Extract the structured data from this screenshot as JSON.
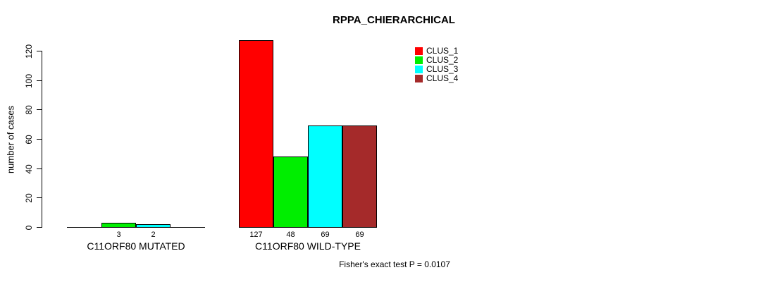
{
  "title": "RPPA_CHIERARCHICAL",
  "footer": "Fisher's exact test P = 0.0107",
  "chart_data": {
    "type": "bar",
    "title": "RPPA_CHIERARCHICAL",
    "xlabel": "",
    "ylabel": "number of cases",
    "categories": [
      "C11ORF80 MUTATED",
      "C11ORF80 WILD-TYPE"
    ],
    "series": [
      {
        "name": "CLUS_1",
        "color": "#FF0000",
        "values": [
          0,
          127
        ]
      },
      {
        "name": "CLUS_2",
        "color": "#00EE00",
        "values": [
          3,
          48
        ]
      },
      {
        "name": "CLUS_3",
        "color": "#00FFFF",
        "values": [
          2,
          69
        ]
      },
      {
        "name": "CLUS_4",
        "color": "#A52A2A",
        "values": [
          0,
          69
        ]
      }
    ],
    "yticks": [
      0,
      20,
      40,
      60,
      80,
      100,
      120
    ],
    "ylim": [
      0,
      130
    ],
    "grid": false,
    "legend_position": "top-right",
    "bar_value_labels": [
      [
        "",
        "3",
        "2",
        ""
      ],
      [
        "127",
        "48",
        "69",
        "69"
      ]
    ],
    "annotation": "Fisher's exact test P = 0.0107"
  }
}
